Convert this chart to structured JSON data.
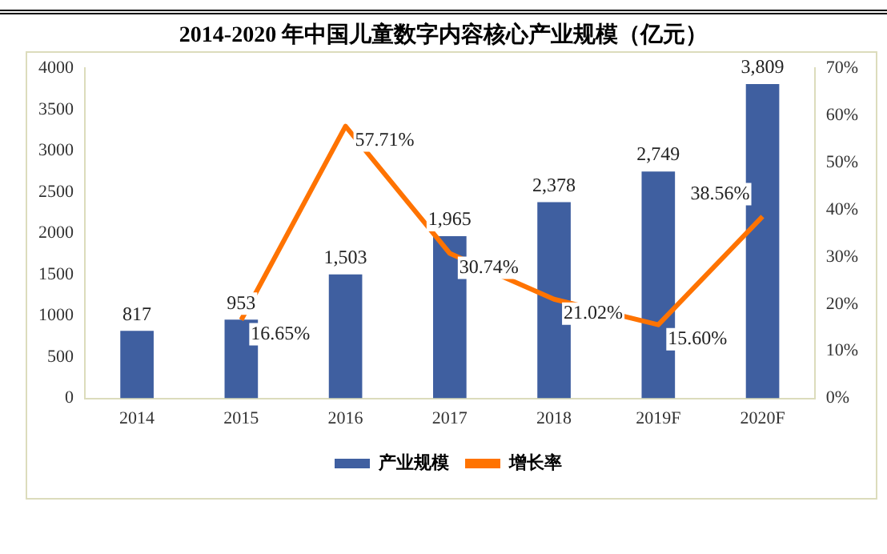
{
  "chart_data": {
    "type": "bar",
    "title": "2014-2020 年中国儿童数字内容核心产业规模（亿元）",
    "categories": [
      "2014",
      "2015",
      "2016",
      "2017",
      "2018",
      "2019F",
      "2020F"
    ],
    "series": [
      {
        "name": "产业规模",
        "color": "#3f5fa0",
        "values": [
          817,
          953,
          1503,
          1965,
          2378,
          2749,
          3809
        ],
        "value_labels": [
          "817",
          "953",
          "1,503",
          "1,965",
          "2,378",
          "2,749",
          "3,809"
        ]
      },
      {
        "name": "增长率",
        "type": "line",
        "axis": "y2",
        "color": "#ff7300",
        "values": [
          null,
          16.65,
          57.71,
          30.74,
          21.02,
          15.6,
          38.56
        ],
        "value_labels": [
          null,
          "16.65%",
          "57.71%",
          "30.74%",
          "21.02%",
          "15.60%",
          "38.56%"
        ]
      }
    ],
    "ylim": [
      0,
      4000
    ],
    "yticks": [
      0,
      500,
      1000,
      1500,
      2000,
      2500,
      3000,
      3500,
      4000
    ],
    "y2lim": [
      0,
      70
    ],
    "y2ticks": [
      {
        "value": 0,
        "label": "0%"
      },
      {
        "value": 10,
        "label": "10%"
      },
      {
        "value": 20,
        "label": "20%"
      },
      {
        "value": 30,
        "label": "30%"
      },
      {
        "value": 40,
        "label": "40%"
      },
      {
        "value": 50,
        "label": "50%"
      },
      {
        "value": 60,
        "label": "60%"
      },
      {
        "value": 70,
        "label": "70%"
      }
    ],
    "grid": false,
    "legend": "bottom",
    "marker": "none",
    "line_style": "solid"
  }
}
